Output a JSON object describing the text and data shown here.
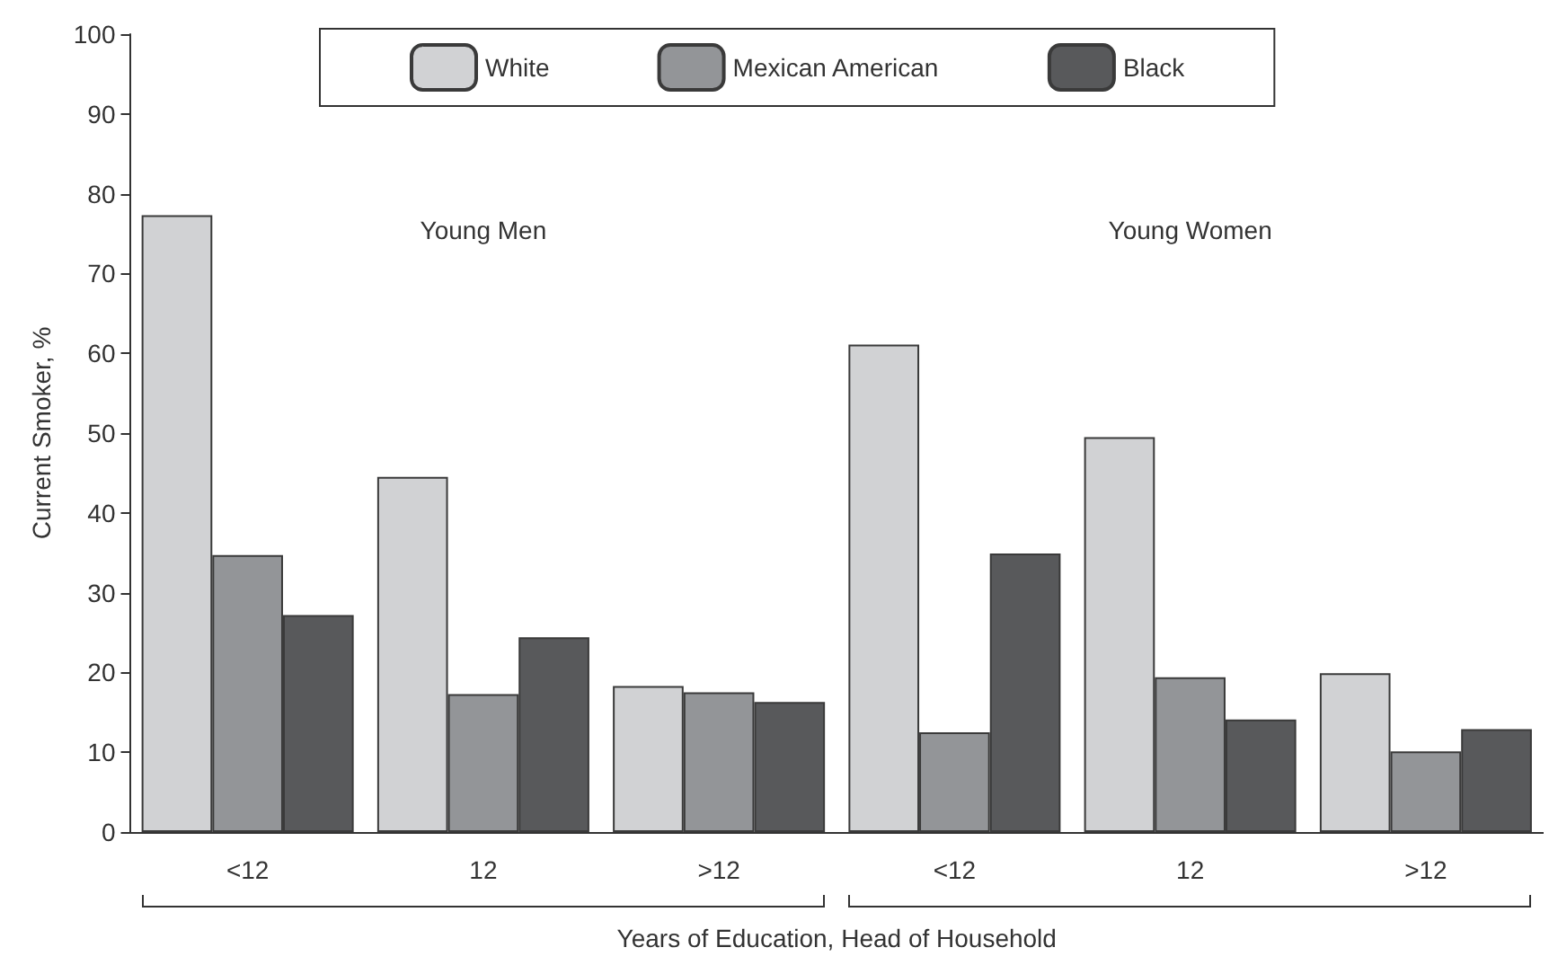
{
  "chart_data": {
    "type": "bar",
    "categories": [
      "<12",
      "12",
      ">12",
      "<12",
      "12",
      ">12"
    ],
    "series": [
      {
        "name": "White",
        "color": "#d1d2d4",
        "values": [
          77.3,
          44.5,
          18.3,
          61.1,
          49.5,
          19.9
        ]
      },
      {
        "name": "Mexican American",
        "color": "#939598",
        "values": [
          34.7,
          17.3,
          17.5,
          12.5,
          19.4,
          10.1
        ]
      },
      {
        "name": "Black",
        "color": "#58595b",
        "values": [
          27.2,
          24.4,
          16.3,
          34.9,
          14.1,
          12.9
        ]
      }
    ],
    "xlabel": "Years of Education, Head of Household",
    "ylabel": "Current Smoker, %",
    "ylim": [
      0,
      100
    ],
    "yticks": [
      0,
      10,
      20,
      30,
      40,
      50,
      60,
      70,
      80,
      90,
      100
    ],
    "annotations": [
      "Young Men",
      "Young Women"
    ],
    "legend": "top",
    "grid": false
  }
}
